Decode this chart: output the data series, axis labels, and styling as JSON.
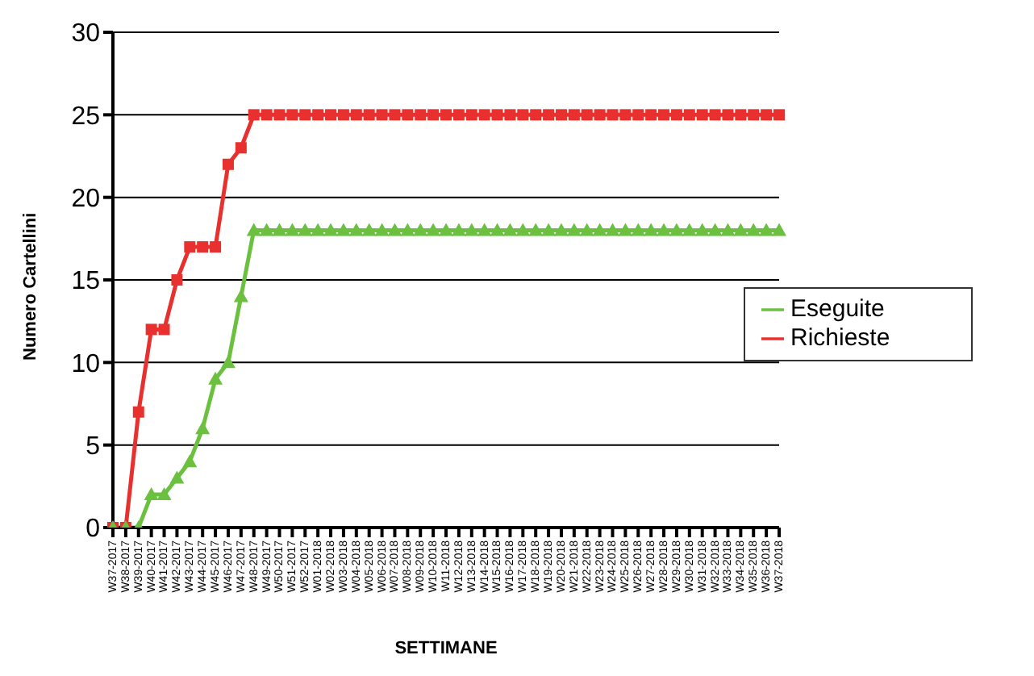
{
  "chart_data": {
    "type": "line",
    "xlabel": "SETTIMANE",
    "ylabel": "Numero Cartellini",
    "categories": [
      "W37-2017",
      "W38-2017",
      "W39-2017",
      "W40-2017",
      "W41-2017",
      "W42-2017",
      "W43-2017",
      "W44-2017",
      "W45-2017",
      "W46-2017",
      "W47-2017",
      "W48-2017",
      "W49-2017",
      "W50-2017",
      "W51-2017",
      "W52-2017",
      "W01-2018",
      "W02-2018",
      "W03-2018",
      "W04-2018",
      "W05-2018",
      "W06-2018",
      "W07-2018",
      "W08-2018",
      "W09-2018",
      "W10-2018",
      "W11-2018",
      "W12-2018",
      "W13-2018",
      "W14-2018",
      "W15-2018",
      "W16-2018",
      "W17-2018",
      "W18-2018",
      "W19-2018",
      "W20-2018",
      "W21-2018",
      "W22-2018",
      "W23-2018",
      "W24-2018",
      "W25-2018",
      "W26-2018",
      "W27-2018",
      "W28-2018",
      "W29-2018",
      "W30-2018",
      "W31-2018",
      "W32-2018",
      "W33-2018",
      "W34-2018",
      "W35-2018",
      "W36-2018",
      "W37-2018"
    ],
    "series": [
      {
        "name": "Richieste",
        "color": "#e8312f",
        "marker": "square",
        "values": [
          0,
          0,
          7,
          12,
          12,
          15,
          17,
          17,
          17,
          22,
          23,
          25,
          25,
          25,
          25,
          25,
          25,
          25,
          25,
          25,
          25,
          25,
          25,
          25,
          25,
          25,
          25,
          25,
          25,
          25,
          25,
          25,
          25,
          25,
          25,
          25,
          25,
          25,
          25,
          25,
          25,
          25,
          25,
          25,
          25,
          25,
          25,
          25,
          25,
          25,
          25,
          25,
          25
        ]
      },
      {
        "name": "Eseguite",
        "color": "#6cc040",
        "marker": "triangle",
        "values": [
          0,
          0,
          0,
          2,
          2,
          3,
          4,
          6,
          9,
          10,
          14,
          18,
          18,
          18,
          18,
          18,
          18,
          18,
          18,
          18,
          18,
          18,
          18,
          18,
          18,
          18,
          18,
          18,
          18,
          18,
          18,
          18,
          18,
          18,
          18,
          18,
          18,
          18,
          18,
          18,
          18,
          18,
          18,
          18,
          18,
          18,
          18,
          18,
          18,
          18,
          18,
          18,
          18
        ]
      }
    ],
    "ylim": [
      0,
      30
    ],
    "yticks": [
      0,
      5,
      10,
      15,
      20,
      25,
      30
    ],
    "grid": "y",
    "legend": "right"
  }
}
